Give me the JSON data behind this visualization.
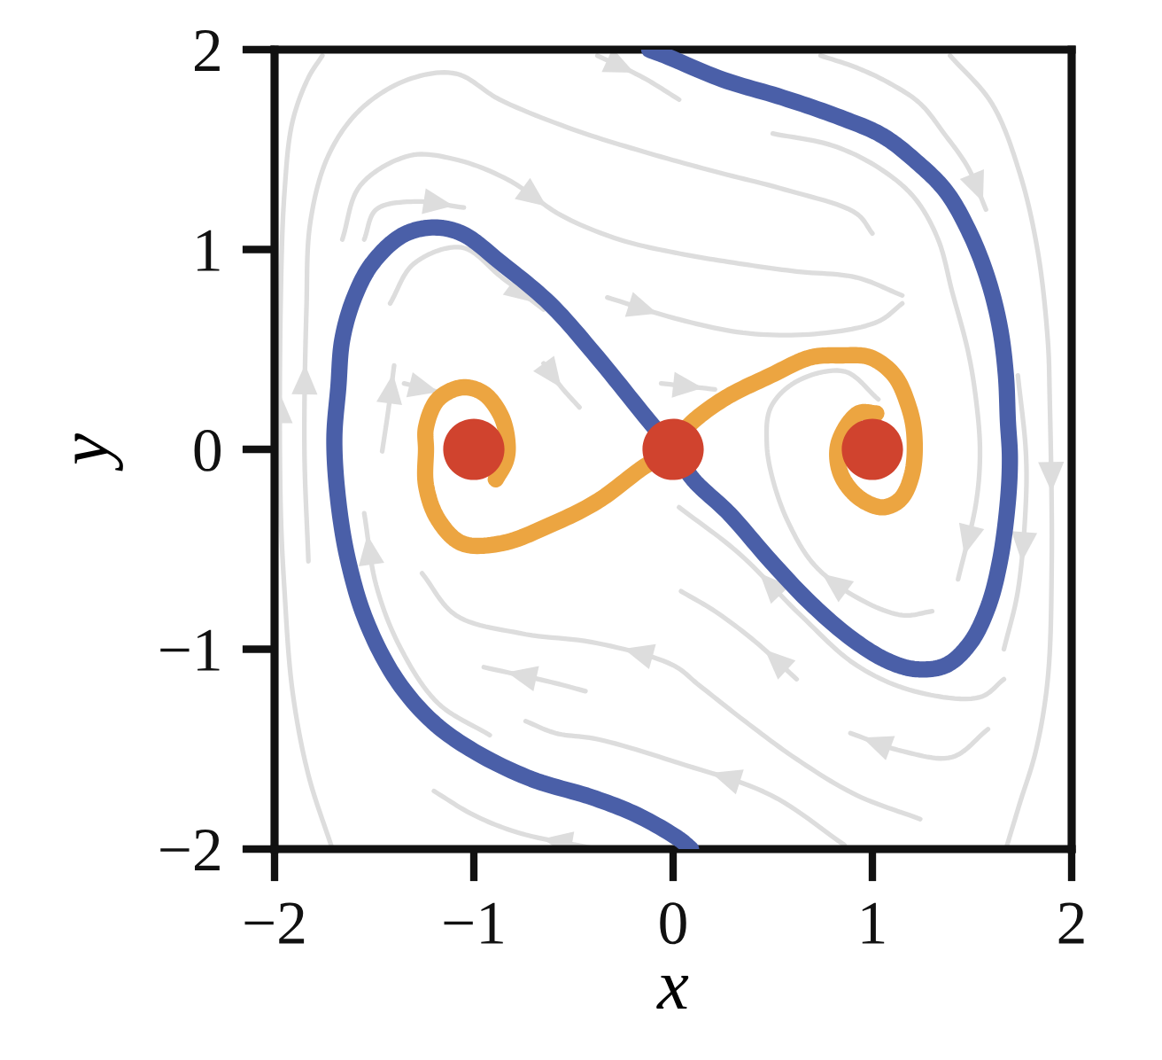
{
  "chart_data": {
    "type": "line",
    "xlabel": "x",
    "ylabel": "y",
    "xlim": [
      -2,
      2
    ],
    "ylim": [
      -2,
      2
    ],
    "xticks": [
      {
        "value": -2,
        "label": "−2"
      },
      {
        "value": -1,
        "label": "−1"
      },
      0,
      1,
      2
    ],
    "yticks": [
      {
        "value": -2,
        "label": "−2"
      },
      {
        "value": -1,
        "label": "−1"
      },
      0,
      1,
      2
    ],
    "line_style": "solid",
    "series": [
      {
        "color": "#dddddd",
        "x": [
          -1.71,
          -1.83,
          -1.91,
          -1.95,
          -1.97,
          -1.97,
          -1.95,
          -1.91,
          -1.83,
          -1.76
        ],
        "values": [
          -2.0,
          -1.63,
          -1.21,
          -0.71,
          -0.27,
          0.7,
          1.29,
          1.64,
          1.86,
          1.97
        ]
      },
      {
        "color": "#dddddd",
        "x": [
          -1.83,
          -1.85,
          -1.84,
          -1.82,
          -1.73,
          -1.57,
          -1.33,
          -1.09,
          -0.87,
          -0.5,
          -0.15,
          0.21,
          0.56,
          0.92,
          1.0
        ],
        "values": [
          -0.56,
          -0.01,
          0.7,
          1.14,
          1.47,
          1.7,
          1.85,
          1.88,
          1.75,
          1.6,
          1.49,
          1.39,
          1.3,
          1.18,
          1.08
        ]
      },
      {
        "color": "#dddddd",
        "x": [
          -1.66,
          -1.57,
          -1.32,
          -1.09,
          -0.83,
          -0.56,
          -0.27,
          0.03,
          0.33,
          0.62,
          0.92,
          1.15
        ],
        "values": [
          1.05,
          1.32,
          1.47,
          1.45,
          1.35,
          1.17,
          1.05,
          0.98,
          0.93,
          0.89,
          0.86,
          0.77
        ]
      },
      {
        "color": "#dddddd",
        "x": [
          -1.55,
          -1.49,
          -1.3,
          -1.05
        ],
        "values": [
          1.05,
          1.2,
          1.24,
          1.21
        ]
      },
      {
        "color": "#dddddd",
        "x": [
          -1.42,
          -1.3,
          -1.06,
          -0.86,
          -0.65
        ],
        "values": [
          0.73,
          0.93,
          1.01,
          0.86,
          0.7
        ]
      },
      {
        "color": "#dddddd",
        "x": [
          -0.38,
          -0.15,
          0.03
        ],
        "values": [
          1.97,
          1.86,
          1.75
        ]
      },
      {
        "color": "#dddddd",
        "x": [
          0.74,
          0.92,
          1.09,
          1.24,
          1.36,
          1.48,
          1.57
        ],
        "values": [
          1.97,
          1.91,
          1.83,
          1.73,
          1.58,
          1.41,
          1.2
        ]
      },
      {
        "color": "#dddddd",
        "x": [
          1.39,
          1.6,
          1.74,
          1.83,
          1.88,
          1.89,
          1.9,
          1.88,
          1.82,
          1.74,
          1.67
        ],
        "values": [
          1.97,
          1.73,
          1.38,
          0.99,
          0.55,
          0.25,
          -0.56,
          -1.15,
          -1.51,
          -1.77,
          -2.0
        ]
      },
      {
        "color": "#dddddd",
        "x": [
          0.5,
          0.8,
          1.03,
          1.21,
          1.33,
          1.4,
          1.48,
          1.52,
          1.54,
          1.52,
          1.43
        ],
        "values": [
          1.58,
          1.52,
          1.41,
          1.26,
          1.05,
          0.79,
          0.49,
          0.25,
          -0.01,
          -0.27,
          -0.65
        ]
      },
      {
        "color": "#dddddd",
        "x": [
          -0.33,
          0.03,
          0.38,
          0.74,
          1.03,
          1.15
        ],
        "values": [
          0.76,
          0.65,
          0.58,
          0.58,
          0.64,
          0.73
        ]
      },
      {
        "color": "#dddddd",
        "x": [
          1.3,
          1.15,
          0.92,
          0.71,
          0.58,
          0.5,
          0.47,
          0.49,
          0.62,
          0.86,
          1.03
        ],
        "values": [
          -0.81,
          -0.83,
          -0.74,
          -0.58,
          -0.37,
          -0.15,
          0.03,
          0.21,
          0.34,
          0.39,
          0.25
        ]
      },
      {
        "color": "#dddddd",
        "x": [
          -1.46,
          -1.43,
          -1.4
        ],
        "values": [
          -0.01,
          0.19,
          0.42
        ]
      },
      {
        "color": "#dddddd",
        "x": [
          -1.35,
          -1.15
        ],
        "values": [
          0.33,
          0.28
        ]
      },
      {
        "color": "#dddddd",
        "x": [
          -0.65,
          -0.56,
          -0.47
        ],
        "values": [
          0.43,
          0.31,
          0.21
        ]
      },
      {
        "color": "#dddddd",
        "x": [
          -0.06,
          0.21
        ],
        "values": [
          0.33,
          0.3
        ]
      },
      {
        "color": "#dddddd",
        "x": [
          -0.92,
          -1.18,
          -1.37,
          -1.49,
          -1.55
        ],
        "values": [
          -1.43,
          -1.27,
          -0.99,
          -0.68,
          -0.32
        ]
      },
      {
        "color": "#dddddd",
        "x": [
          1.24,
          0.92,
          0.62,
          0.36,
          0.13,
          0.0,
          -0.38,
          -0.77,
          -1.09,
          -1.26
        ],
        "values": [
          -1.85,
          -1.73,
          -1.55,
          -1.36,
          -1.18,
          -1.08,
          -0.97,
          -0.92,
          -0.83,
          -0.62
        ]
      },
      {
        "color": "#dddddd",
        "x": [
          0.86,
          0.49,
          0.03,
          -0.38,
          -0.59,
          -0.74
        ],
        "values": [
          -1.98,
          -1.73,
          -1.57,
          -1.45,
          -1.42,
          -1.36
        ]
      },
      {
        "color": "#dddddd",
        "x": [
          -0.44,
          -0.59,
          -0.95
        ],
        "values": [
          -1.21,
          -1.17,
          -1.09
        ]
      },
      {
        "color": "#dddddd",
        "x": [
          -0.38,
          -0.77,
          -1.0,
          -1.2
        ],
        "values": [
          -2.0,
          -1.92,
          -1.83,
          -1.71
        ]
      },
      {
        "color": "#dddddd",
        "x": [
          1.66,
          1.54,
          1.21,
          0.92,
          0.64,
          0.33,
          0.03
        ],
        "values": [
          -1.15,
          -1.24,
          -1.21,
          -1.08,
          -0.83,
          -0.52,
          -0.29
        ]
      },
      {
        "color": "#dddddd",
        "x": [
          0.62,
          0.41,
          0.21,
          0.04
        ],
        "values": [
          -1.15,
          -0.96,
          -0.81,
          -0.71
        ]
      },
      {
        "color": "#dddddd",
        "x": [
          1.58,
          1.4,
          1.15,
          0.89
        ],
        "values": [
          -1.4,
          -1.54,
          -1.51,
          -1.42
        ]
      },
      {
        "color": "#dddddd",
        "x": [
          1.73,
          1.77,
          1.77,
          1.73,
          1.66
        ],
        "values": [
          0.37,
          -0.01,
          -0.27,
          -0.71,
          -1.0
        ]
      },
      {
        "color": "#4a5fa8",
        "x": [
          -0.12,
          -0.04,
          0.25,
          0.55,
          0.84,
          1.05,
          1.22,
          1.37,
          1.49,
          1.58,
          1.64,
          1.67,
          1.68,
          1.69,
          1.68,
          1.64,
          1.58,
          1.49,
          1.37,
          1.22,
          1.08,
          0.9,
          0.69,
          0.49,
          0.28,
          0.1,
          0.0,
          -0.12,
          -0.38,
          -0.62,
          -0.86,
          -1.06,
          -1.21,
          -1.36,
          -1.51,
          -1.6,
          -1.66,
          -1.68,
          -1.7,
          -1.68,
          -1.63,
          -1.54,
          -1.39,
          -1.21,
          -1.0,
          -0.71,
          -0.41,
          -0.18,
          0.03,
          0.09
        ],
        "values": [
          2.0,
          1.97,
          1.85,
          1.76,
          1.66,
          1.57,
          1.44,
          1.29,
          1.08,
          0.85,
          0.61,
          0.37,
          0.14,
          -0.04,
          -0.26,
          -0.56,
          -0.79,
          -0.97,
          -1.08,
          -1.1,
          -1.06,
          -0.95,
          -0.77,
          -0.56,
          -0.32,
          -0.15,
          0.0,
          0.14,
          0.46,
          0.73,
          0.93,
          1.08,
          1.11,
          1.07,
          0.93,
          0.76,
          0.55,
          0.31,
          0.05,
          -0.26,
          -0.56,
          -0.86,
          -1.15,
          -1.36,
          -1.51,
          -1.65,
          -1.74,
          -1.83,
          -1.95,
          -2.0
        ]
      },
      {
        "color": "#eca541",
        "x": [
          -0.89,
          -0.84,
          -0.83,
          -0.86,
          -0.95,
          -1.06,
          -1.18,
          -1.24,
          -1.24,
          -1.24,
          -1.18,
          -1.06,
          -0.86,
          -0.62,
          -0.38,
          -0.15,
          0.0,
          0.07,
          0.25,
          0.49,
          0.69,
          0.84,
          0.99,
          1.11,
          1.18,
          1.21,
          1.2,
          1.14,
          1.05,
          0.93,
          0.84,
          0.83,
          0.93,
          1.02
        ],
        "values": [
          -0.15,
          -0.06,
          0.02,
          0.16,
          0.28,
          0.31,
          0.25,
          0.11,
          0.0,
          -0.18,
          -0.35,
          -0.47,
          -0.47,
          -0.38,
          -0.26,
          -0.09,
          0.0,
          0.11,
          0.25,
          0.37,
          0.46,
          0.47,
          0.46,
          0.37,
          0.22,
          0.08,
          -0.12,
          -0.25,
          -0.29,
          -0.24,
          -0.12,
          0.03,
          0.18,
          0.18
        ]
      },
      {
        "type": "scatter",
        "marker": "circle",
        "color": "#d0432e",
        "x": [
          -1,
          0,
          1
        ],
        "values": [
          0,
          0,
          0
        ]
      }
    ]
  }
}
